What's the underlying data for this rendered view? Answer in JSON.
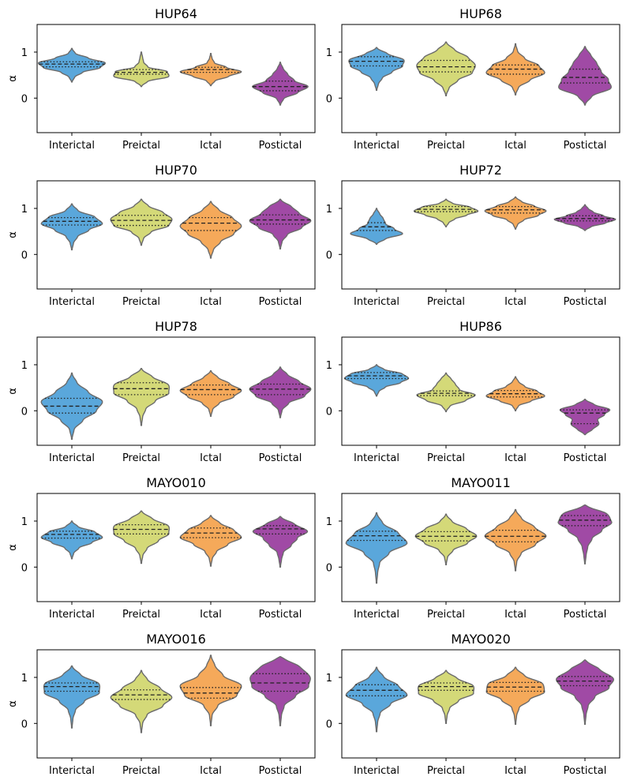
{
  "chart_data": {
    "type": "violin",
    "layout": "5 rows x 2 columns",
    "ylabel": "α",
    "ylim": [
      -0.75,
      1.6
    ],
    "yticks": [
      0,
      1
    ],
    "categories": [
      "Interictal",
      "Preictal",
      "Ictal",
      "Postictal"
    ],
    "colors": [
      "#5aa7db",
      "#d4d978",
      "#f5a95a",
      "#a04aa5"
    ],
    "inner": "quartile lines (median dashed, quartiles dotted)",
    "panels": [
      {
        "title": "HUP64",
        "violins": [
          {
            "min": 0.35,
            "q1": 0.68,
            "median": 0.74,
            "q3": 0.79,
            "max": 1.08,
            "width": 0.48,
            "density": [
              0.04,
              0.12,
              0.35,
              0.85,
              1.0,
              0.55,
              0.15,
              0.04
            ]
          },
          {
            "min": 0.25,
            "q1": 0.52,
            "median": 0.56,
            "q3": 0.62,
            "max": 1.0,
            "width": 0.44,
            "density": [
              0.05,
              0.3,
              1.0,
              0.85,
              0.2,
              0.07,
              0.05,
              0.02
            ]
          },
          {
            "min": 0.27,
            "q1": 0.56,
            "median": 0.62,
            "q3": 0.67,
            "max": 0.97,
            "width": 0.44,
            "density": [
              0.05,
              0.2,
              0.65,
              1.0,
              0.5,
              0.12,
              0.05,
              0.02
            ]
          },
          {
            "min": -0.15,
            "q1": 0.16,
            "median": 0.25,
            "q3": 0.37,
            "max": 0.78,
            "width": 0.4,
            "density": [
              0.04,
              0.18,
              0.7,
              1.0,
              0.5,
              0.3,
              0.15,
              0.04
            ]
          }
        ]
      },
      {
        "title": "HUP68",
        "violins": [
          {
            "min": 0.17,
            "q1": 0.7,
            "median": 0.8,
            "q3": 0.9,
            "max": 1.1,
            "width": 0.44,
            "density": [
              0.03,
              0.08,
              0.2,
              0.5,
              0.85,
              1.0,
              0.55,
              0.08
            ]
          },
          {
            "min": 0.05,
            "q1": 0.57,
            "median": 0.68,
            "q3": 0.82,
            "max": 1.22,
            "width": 0.42,
            "density": [
              0.03,
              0.15,
              0.45,
              0.9,
              1.0,
              0.85,
              0.45,
              0.08
            ]
          },
          {
            "min": 0.07,
            "q1": 0.52,
            "median": 0.63,
            "q3": 0.72,
            "max": 1.18,
            "width": 0.42,
            "density": [
              0.03,
              0.15,
              0.55,
              1.0,
              0.8,
              0.35,
              0.1,
              0.03
            ]
          },
          {
            "min": -0.15,
            "q1": 0.33,
            "median": 0.45,
            "q3": 0.63,
            "max": 1.12,
            "width": 0.42,
            "density": [
              0.05,
              0.35,
              1.0,
              0.8,
              0.55,
              0.45,
              0.3,
              0.08
            ]
          }
        ]
      },
      {
        "title": "HUP70",
        "violins": [
          {
            "min": 0.1,
            "q1": 0.64,
            "median": 0.72,
            "q3": 0.8,
            "max": 1.1,
            "width": 0.44,
            "density": [
              0.03,
              0.07,
              0.2,
              0.55,
              1.0,
              0.85,
              0.3,
              0.06
            ]
          },
          {
            "min": 0.2,
            "q1": 0.63,
            "median": 0.74,
            "q3": 0.85,
            "max": 1.2,
            "width": 0.44,
            "density": [
              0.03,
              0.1,
              0.35,
              0.9,
              1.0,
              0.8,
              0.35,
              0.08
            ]
          },
          {
            "min": -0.08,
            "q1": 0.52,
            "median": 0.68,
            "q3": 0.8,
            "max": 1.15,
            "width": 0.44,
            "density": [
              0.03,
              0.12,
              0.35,
              0.75,
              1.0,
              0.8,
              0.4,
              0.08
            ]
          },
          {
            "min": 0.12,
            "q1": 0.66,
            "median": 0.75,
            "q3": 0.86,
            "max": 1.2,
            "width": 0.44,
            "density": [
              0.03,
              0.08,
              0.25,
              0.7,
              1.0,
              0.7,
              0.55,
              0.1
            ]
          }
        ]
      },
      {
        "title": "HUP72",
        "violins": [
          {
            "min": 0.22,
            "q1": 0.52,
            "median": 0.6,
            "q3": 0.69,
            "max": 1.0,
            "width": 0.42,
            "density": [
              0.05,
              0.45,
              1.0,
              0.6,
              0.3,
              0.25,
              0.15,
              0.04
            ]
          },
          {
            "min": 0.6,
            "q1": 0.93,
            "median": 0.98,
            "q3": 1.04,
            "max": 1.2,
            "width": 0.46,
            "density": [
              0.04,
              0.12,
              0.3,
              0.65,
              1.0,
              0.85,
              0.3,
              0.05
            ]
          },
          {
            "min": 0.55,
            "q1": 0.9,
            "median": 0.97,
            "q3": 1.04,
            "max": 1.25,
            "width": 0.44,
            "density": [
              0.04,
              0.1,
              0.3,
              0.75,
              1.0,
              0.7,
              0.3,
              0.05
            ]
          },
          {
            "min": 0.52,
            "q1": 0.73,
            "median": 0.78,
            "q3": 0.84,
            "max": 1.08,
            "width": 0.44,
            "density": [
              0.06,
              0.3,
              0.75,
              1.0,
              0.6,
              0.3,
              0.15,
              0.04
            ]
          }
        ]
      },
      {
        "title": "HUP78",
        "violins": [
          {
            "min": -0.62,
            "q1": -0.05,
            "median": 0.1,
            "q3": 0.27,
            "max": 0.82,
            "width": 0.44,
            "density": [
              0.03,
              0.1,
              0.4,
              0.8,
              1.0,
              0.6,
              0.25,
              0.05
            ]
          },
          {
            "min": -0.32,
            "q1": 0.35,
            "median": 0.48,
            "q3": 0.61,
            "max": 0.92,
            "width": 0.44,
            "density": [
              0.02,
              0.05,
              0.15,
              0.45,
              0.9,
              1.0,
              0.55,
              0.08
            ]
          },
          {
            "min": -0.12,
            "q1": 0.35,
            "median": 0.46,
            "q3": 0.56,
            "max": 0.87,
            "width": 0.44,
            "density": [
              0.03,
              0.08,
              0.3,
              0.75,
              1.0,
              0.7,
              0.35,
              0.06
            ]
          },
          {
            "min": -0.15,
            "q1": 0.35,
            "median": 0.47,
            "q3": 0.58,
            "max": 0.95,
            "width": 0.44,
            "density": [
              0.03,
              0.08,
              0.3,
              0.8,
              1.0,
              0.7,
              0.35,
              0.06
            ]
          }
        ]
      },
      {
        "title": "HUP86",
        "violins": [
          {
            "min": 0.32,
            "q1": 0.7,
            "median": 0.76,
            "q3": 0.83,
            "max": 1.0,
            "width": 0.46,
            "density": [
              0.04,
              0.1,
              0.3,
              0.75,
              1.0,
              0.9,
              0.35,
              0.05
            ]
          },
          {
            "min": -0.02,
            "q1": 0.33,
            "median": 0.38,
            "q3": 0.43,
            "max": 0.82,
            "width": 0.42,
            "density": [
              0.04,
              0.2,
              0.75,
              1.0,
              0.45,
              0.35,
              0.25,
              0.05
            ]
          },
          {
            "min": 0.0,
            "q1": 0.3,
            "median": 0.37,
            "q3": 0.44,
            "max": 0.74,
            "width": 0.42,
            "density": [
              0.04,
              0.15,
              0.6,
              1.0,
              0.75,
              0.35,
              0.15,
              0.04
            ]
          },
          {
            "min": -0.52,
            "q1": -0.28,
            "median": -0.05,
            "q3": 0.02,
            "max": 0.25,
            "width": 0.4,
            "density": [
              0.12,
              0.4,
              0.55,
              0.45,
              0.7,
              1.0,
              0.5,
              0.1
            ]
          }
        ]
      },
      {
        "title": "MAYO010",
        "violins": [
          {
            "min": 0.18,
            "q1": 0.63,
            "median": 0.71,
            "q3": 0.78,
            "max": 1.0,
            "width": 0.44,
            "density": [
              0.03,
              0.08,
              0.25,
              0.65,
              1.0,
              0.85,
              0.3,
              0.05
            ]
          },
          {
            "min": 0.08,
            "q1": 0.72,
            "median": 0.82,
            "q3": 0.92,
            "max": 1.22,
            "width": 0.44,
            "density": [
              0.02,
              0.06,
              0.2,
              0.55,
              0.9,
              1.0,
              0.55,
              0.1
            ]
          },
          {
            "min": 0.02,
            "q1": 0.64,
            "median": 0.74,
            "q3": 0.85,
            "max": 1.12,
            "width": 0.44,
            "density": [
              0.02,
              0.06,
              0.2,
              0.55,
              1.0,
              0.85,
              0.45,
              0.08
            ]
          },
          {
            "min": 0.0,
            "q1": 0.72,
            "median": 0.83,
            "q3": 0.9,
            "max": 1.1,
            "width": 0.44,
            "density": [
              0.02,
              0.05,
              0.1,
              0.35,
              0.55,
              1.0,
              0.7,
              0.12
            ]
          }
        ]
      },
      {
        "title": "MAYO011",
        "violins": [
          {
            "min": -0.35,
            "q1": 0.58,
            "median": 0.68,
            "q3": 0.78,
            "max": 1.18,
            "width": 0.44,
            "density": [
              0.02,
              0.04,
              0.1,
              0.4,
              1.0,
              0.8,
              0.3,
              0.06
            ]
          },
          {
            "min": 0.05,
            "q1": 0.57,
            "median": 0.67,
            "q3": 0.77,
            "max": 1.15,
            "width": 0.44,
            "density": [
              0.02,
              0.06,
              0.25,
              0.7,
              1.0,
              0.75,
              0.3,
              0.06
            ]
          },
          {
            "min": -0.08,
            "q1": 0.55,
            "median": 0.67,
            "q3": 0.8,
            "max": 1.25,
            "width": 0.44,
            "density": [
              0.02,
              0.05,
              0.2,
              0.65,
              1.0,
              0.7,
              0.3,
              0.06
            ]
          },
          {
            "min": 0.07,
            "q1": 0.9,
            "median": 1.02,
            "q3": 1.12,
            "max": 1.35,
            "width": 0.48,
            "density": [
              0.02,
              0.04,
              0.08,
              0.2,
              0.5,
              0.9,
              1.0,
              0.25
            ]
          }
        ]
      },
      {
        "title": "MAYO016",
        "violins": [
          {
            "min": -0.1,
            "q1": 0.7,
            "median": 0.8,
            "q3": 0.88,
            "max": 1.25,
            "width": 0.44,
            "density": [
              0.02,
              0.04,
              0.12,
              0.4,
              0.9,
              1.0,
              0.45,
              0.08
            ]
          },
          {
            "min": -0.2,
            "q1": 0.52,
            "median": 0.62,
            "q3": 0.73,
            "max": 1.15,
            "width": 0.44,
            "density": [
              0.02,
              0.05,
              0.2,
              0.7,
              1.0,
              0.7,
              0.3,
              0.06
            ]
          },
          {
            "min": -0.05,
            "q1": 0.55,
            "median": 0.66,
            "q3": 0.78,
            "max": 1.48,
            "width": 0.44,
            "density": [
              0.02,
              0.05,
              0.25,
              0.85,
              1.0,
              0.45,
              0.2,
              0.05
            ]
          },
          {
            "min": -0.05,
            "q1": 0.7,
            "median": 0.88,
            "q3": 1.08,
            "max": 1.45,
            "width": 0.48,
            "density": [
              0.02,
              0.04,
              0.12,
              0.45,
              0.85,
              1.0,
              0.9,
              0.35
            ]
          }
        ]
      },
      {
        "title": "MAYO020",
        "violins": [
          {
            "min": -0.18,
            "q1": 0.6,
            "median": 0.72,
            "q3": 0.84,
            "max": 1.22,
            "width": 0.44,
            "density": [
              0.02,
              0.04,
              0.12,
              0.45,
              1.0,
              0.8,
              0.35,
              0.06
            ]
          },
          {
            "min": 0.0,
            "q1": 0.72,
            "median": 0.8,
            "q3": 0.88,
            "max": 1.15,
            "width": 0.44,
            "density": [
              0.02,
              0.04,
              0.12,
              0.4,
              0.9,
              1.0,
              0.55,
              0.08
            ]
          },
          {
            "min": -0.02,
            "q1": 0.7,
            "median": 0.79,
            "q3": 0.89,
            "max": 1.22,
            "width": 0.44,
            "density": [
              0.02,
              0.04,
              0.12,
              0.45,
              0.95,
              1.0,
              0.45,
              0.08
            ]
          },
          {
            "min": -0.02,
            "q1": 0.82,
            "median": 0.92,
            "q3": 1.02,
            "max": 1.38,
            "width": 0.46,
            "density": [
              0.02,
              0.04,
              0.1,
              0.3,
              0.75,
              1.0,
              0.7,
              0.2
            ]
          }
        ]
      }
    ]
  }
}
